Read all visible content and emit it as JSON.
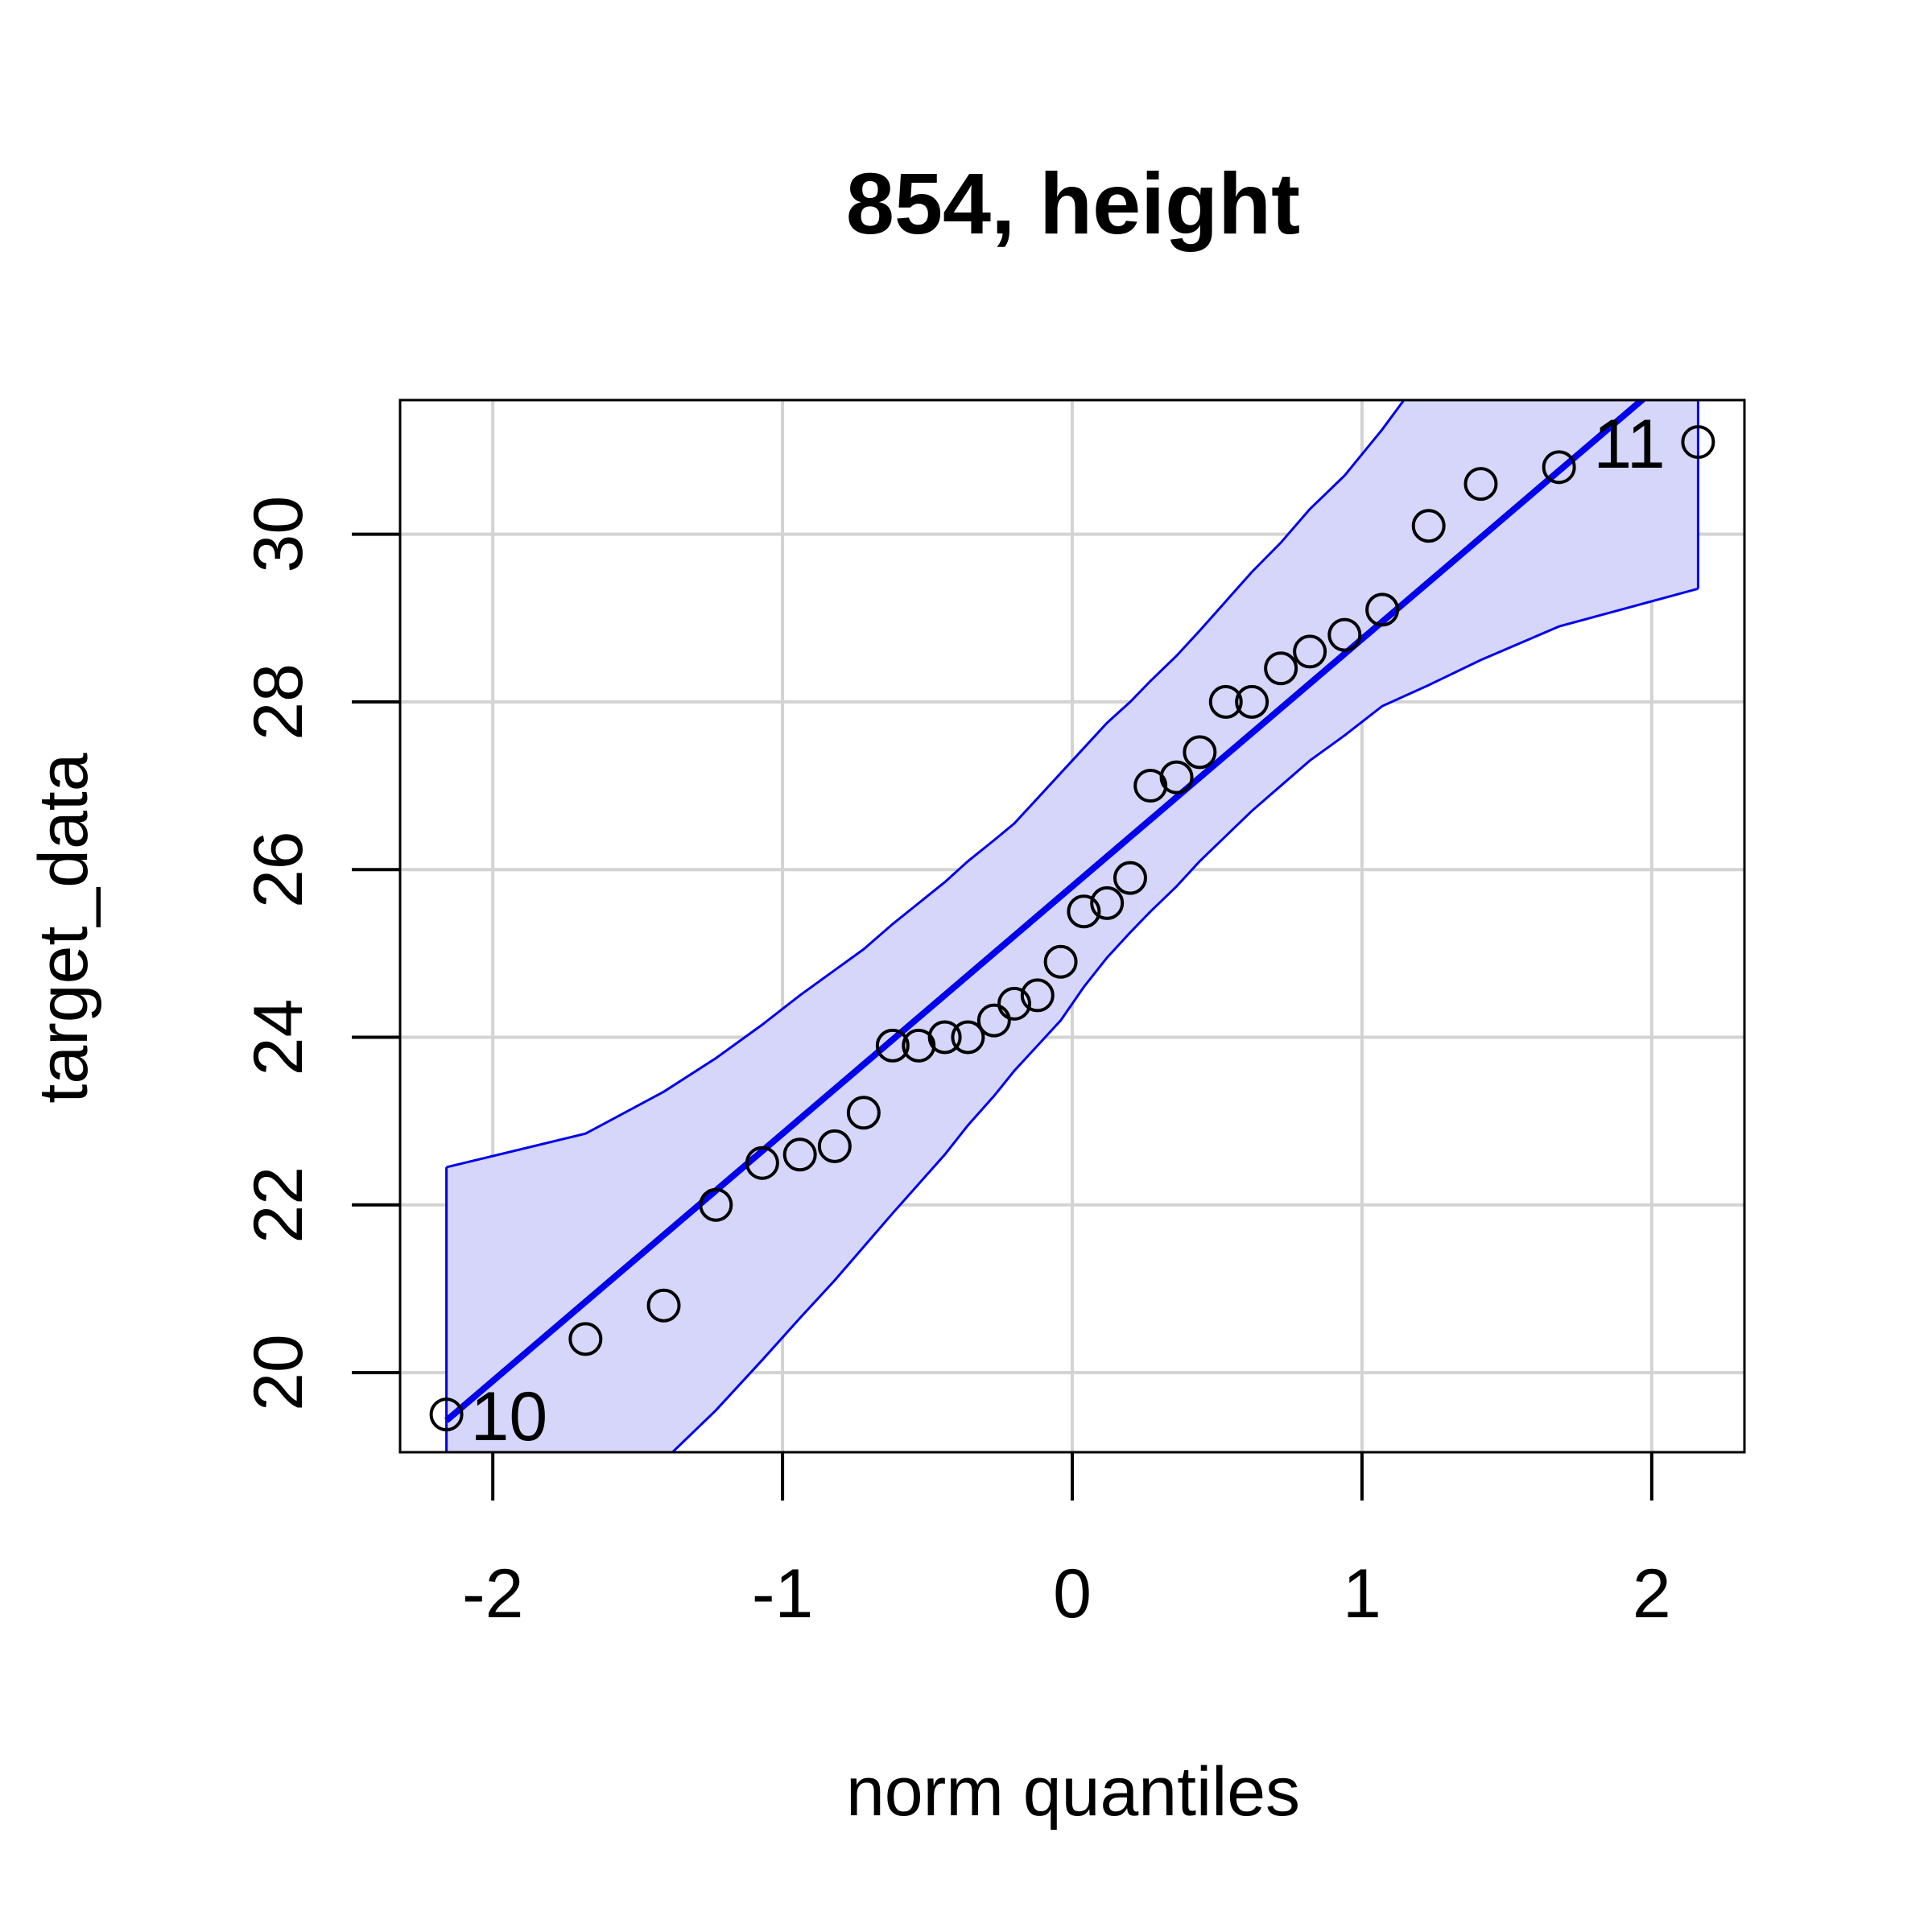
{
  "chart_data": {
    "type": "scatter",
    "title": "854, height",
    "xlabel": "norm quantiles",
    "ylabel": "target_data",
    "xlim": [
      -2.32,
      2.32
    ],
    "ylim": [
      19.05,
      31.6
    ],
    "xticks": [
      -2,
      -1,
      0,
      1,
      2
    ],
    "yticks": [
      20,
      22,
      24,
      26,
      28,
      30
    ],
    "grid": true,
    "colors": {
      "band_fill": "#d6d6fa",
      "band_line": "#0000ee",
      "ref_line": "#0000ee",
      "points": "#000000",
      "grid": "#d3d3d3"
    },
    "points": [
      {
        "x": -2.16,
        "y": 19.5
      },
      {
        "x": -1.68,
        "y": 20.4
      },
      {
        "x": -1.41,
        "y": 20.8
      },
      {
        "x": -1.23,
        "y": 22.0
      },
      {
        "x": -1.07,
        "y": 22.5
      },
      {
        "x": -0.94,
        "y": 22.6
      },
      {
        "x": -0.82,
        "y": 22.7
      },
      {
        "x": -0.72,
        "y": 23.1
      },
      {
        "x": -0.62,
        "y": 23.9
      },
      {
        "x": -0.53,
        "y": 23.9
      },
      {
        "x": -0.44,
        "y": 24.0
      },
      {
        "x": -0.36,
        "y": 24.0
      },
      {
        "x": -0.27,
        "y": 24.2
      },
      {
        "x": -0.2,
        "y": 24.4
      },
      {
        "x": -0.12,
        "y": 24.5
      },
      {
        "x": -0.04,
        "y": 24.9
      },
      {
        "x": 0.04,
        "y": 25.5
      },
      {
        "x": 0.12,
        "y": 25.6
      },
      {
        "x": 0.2,
        "y": 25.9
      },
      {
        "x": 0.27,
        "y": 27.0
      },
      {
        "x": 0.36,
        "y": 27.1
      },
      {
        "x": 0.44,
        "y": 27.4
      },
      {
        "x": 0.53,
        "y": 28.0
      },
      {
        "x": 0.62,
        "y": 28.0
      },
      {
        "x": 0.72,
        "y": 28.4
      },
      {
        "x": 0.82,
        "y": 28.6
      },
      {
        "x": 0.94,
        "y": 28.8
      },
      {
        "x": 1.07,
        "y": 29.1
      },
      {
        "x": 1.23,
        "y": 30.1
      },
      {
        "x": 1.41,
        "y": 30.6
      },
      {
        "x": 1.68,
        "y": 30.8
      },
      {
        "x": 2.16,
        "y": 31.1
      }
    ],
    "point_labels": [
      {
        "text": "10",
        "x": -2.16,
        "y": 19.5
      },
      {
        "text": "11",
        "x": 2.16,
        "y": 31.1
      }
    ],
    "reference_line": {
      "intercept": 25.8,
      "slope": 2.95
    },
    "envelope_x": [
      -2.16,
      -1.68,
      -1.41,
      -1.23,
      -1.07,
      -0.94,
      -0.82,
      -0.72,
      -0.62,
      -0.53,
      -0.44,
      -0.36,
      -0.27,
      -0.2,
      -0.12,
      -0.04,
      0.04,
      0.12,
      0.2,
      0.27,
      0.36,
      0.44,
      0.53,
      0.62,
      0.72,
      0.82,
      0.94,
      1.07,
      1.23,
      1.41,
      1.68,
      2.16
    ],
    "envelope_upper": [
      22.45,
      22.85,
      23.35,
      23.75,
      24.15,
      24.5,
      24.8,
      25.05,
      25.35,
      25.6,
      25.85,
      26.1,
      26.35,
      26.55,
      26.85,
      27.15,
      27.45,
      27.75,
      28.0,
      28.25,
      28.55,
      28.85,
      29.2,
      29.55,
      29.9,
      30.3,
      30.7,
      31.25,
      32.0,
      32.6,
      33.5,
      35.0
    ],
    "envelope_lower": [
      16.6,
      18.1,
      18.95,
      19.55,
      20.15,
      20.65,
      21.1,
      21.5,
      21.9,
      22.25,
      22.6,
      22.95,
      23.3,
      23.6,
      23.9,
      24.2,
      24.6,
      24.95,
      25.25,
      25.5,
      25.8,
      26.1,
      26.4,
      26.7,
      27.0,
      27.3,
      27.6,
      27.95,
      28.2,
      28.5,
      28.9,
      29.35
    ]
  }
}
